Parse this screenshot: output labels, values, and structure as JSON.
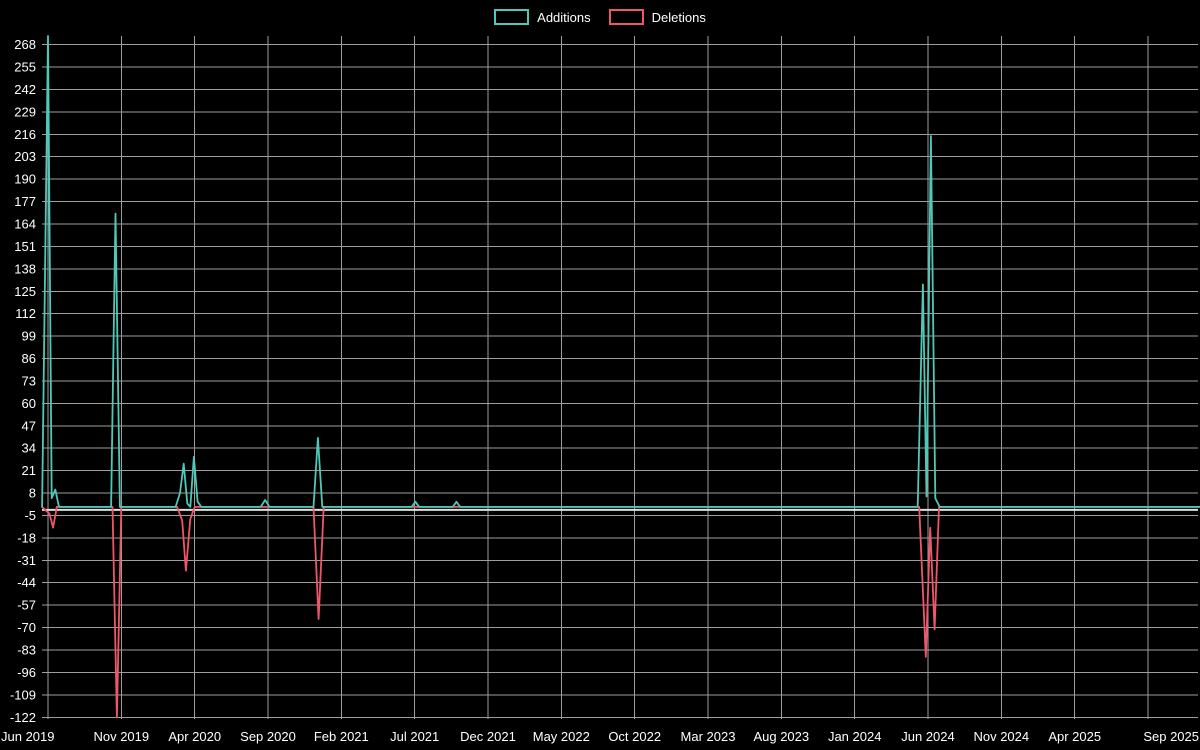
{
  "chart_data": {
    "type": "line",
    "title": "",
    "legend_position": "top-center",
    "background": "#000000",
    "grid": true,
    "grid_color": "#9e9e9e",
    "zero_line_color": "#dcdcdc",
    "text_color": "#ffffff",
    "x_axis": {
      "unit": "months since Jun 2019",
      "tick_positions": [
        0,
        5,
        10,
        15,
        20,
        25,
        30,
        35,
        40,
        45,
        50,
        55,
        60,
        65,
        70,
        75
      ],
      "tick_labels": [
        "Jun 2019",
        "Nov 2019",
        "Apr 2020",
        "Sep 2020",
        "Feb 2021",
        "Jul 2021",
        "Dec 2021",
        "May 2022",
        "Oct 2022",
        "Mar 2023",
        "Aug 2023",
        "Jan 2024",
        "Jun 2024",
        "Nov 2024",
        "Apr 2025",
        "Sep 2025"
      ]
    },
    "y_axis": {
      "tick_values": [
        268,
        255,
        242,
        229,
        216,
        203,
        190,
        177,
        164,
        151,
        138,
        125,
        112,
        99,
        86,
        73,
        60,
        47,
        34,
        21,
        8,
        -5,
        -18,
        -31,
        -44,
        -57,
        -70,
        -83,
        -96,
        -109,
        -122
      ],
      "range": [
        -123,
        273
      ]
    },
    "series": [
      {
        "name": "Additions",
        "color": "#4fc8b8",
        "points": [
          [
            -0.4,
            0
          ],
          [
            0,
            273
          ],
          [
            0.25,
            5
          ],
          [
            0.5,
            10
          ],
          [
            0.75,
            0
          ],
          [
            4.3,
            0
          ],
          [
            4.6,
            170
          ],
          [
            4.9,
            0
          ],
          [
            8.7,
            0
          ],
          [
            9.0,
            8
          ],
          [
            9.25,
            25
          ],
          [
            9.5,
            2
          ],
          [
            9.7,
            0
          ],
          [
            9.95,
            29
          ],
          [
            10.2,
            3
          ],
          [
            10.45,
            0
          ],
          [
            14.5,
            0
          ],
          [
            14.8,
            4
          ],
          [
            15.1,
            0
          ],
          [
            18.1,
            0
          ],
          [
            18.4,
            40
          ],
          [
            18.7,
            0
          ],
          [
            24.8,
            0
          ],
          [
            25.05,
            3
          ],
          [
            25.3,
            0
          ],
          [
            27.6,
            0
          ],
          [
            27.85,
            3
          ],
          [
            28.1,
            0
          ],
          [
            59.3,
            0
          ],
          [
            59.65,
            129
          ],
          [
            59.9,
            6
          ],
          [
            60.2,
            215
          ],
          [
            60.5,
            5
          ],
          [
            60.8,
            0
          ],
          [
            78.5,
            0
          ]
        ]
      },
      {
        "name": "Deletions",
        "color": "#f0566a",
        "points": [
          [
            -0.4,
            0
          ],
          [
            0.1,
            -4
          ],
          [
            0.35,
            -12
          ],
          [
            0.6,
            0
          ],
          [
            4.4,
            0
          ],
          [
            4.7,
            -122
          ],
          [
            5.0,
            0
          ],
          [
            8.8,
            0
          ],
          [
            9.15,
            -8
          ],
          [
            9.4,
            -37
          ],
          [
            9.7,
            -7
          ],
          [
            10.0,
            0
          ],
          [
            18.1,
            0
          ],
          [
            18.45,
            -65
          ],
          [
            18.8,
            0
          ],
          [
            59.4,
            0
          ],
          [
            59.85,
            -87
          ],
          [
            60.15,
            -12
          ],
          [
            60.45,
            -71
          ],
          [
            60.75,
            0
          ],
          [
            78.5,
            0
          ]
        ]
      }
    ]
  }
}
